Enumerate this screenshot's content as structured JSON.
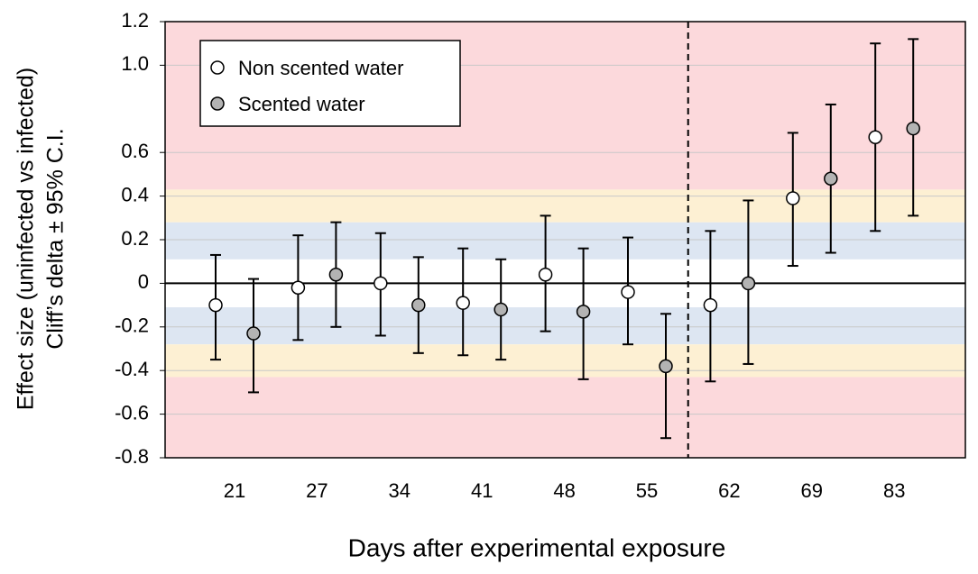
{
  "chart_data": {
    "type": "errorbar-scatter",
    "x_label": "Days after experimental exposure",
    "y_label": [
      "Effect size (uninfected vs infected)",
      "Cliff’s delta ± 95% C.I."
    ],
    "categories": [
      "21",
      "27",
      "34",
      "41",
      "48",
      "55",
      "62",
      "69",
      "83"
    ],
    "series": [
      {
        "name": "Non scented water",
        "color": "#ffffff",
        "values": [
          -0.1,
          -0.02,
          0.0,
          -0.09,
          0.04,
          -0.04,
          -0.1,
          0.39,
          0.67
        ],
        "lower": [
          -0.35,
          -0.26,
          -0.24,
          -0.33,
          -0.22,
          -0.28,
          -0.45,
          0.08,
          0.24
        ],
        "upper": [
          0.13,
          0.22,
          0.23,
          0.16,
          0.31,
          0.21,
          0.24,
          0.69,
          1.1
        ]
      },
      {
        "name": "Scented water",
        "color": "#b3b3b3",
        "values": [
          -0.23,
          0.04,
          -0.1,
          -0.12,
          -0.13,
          -0.38,
          0.0,
          0.48,
          0.71
        ],
        "lower": [
          -0.5,
          -0.2,
          -0.32,
          -0.35,
          -0.44,
          -0.71,
          -0.37,
          0.14,
          0.31
        ],
        "upper": [
          0.02,
          0.28,
          0.12,
          0.11,
          0.16,
          -0.14,
          0.38,
          0.82,
          1.12
        ]
      }
    ],
    "bands": [
      {
        "from": 0.11,
        "to": 0.28,
        "color": "#dde6f2"
      },
      {
        "from": -0.28,
        "to": -0.11,
        "color": "#dde6f2"
      },
      {
        "from": 0.28,
        "to": 0.43,
        "color": "#fdf0d3"
      },
      {
        "from": -0.43,
        "to": -0.28,
        "color": "#fdf0d3"
      },
      {
        "from": 0.43,
        "to": 1.2,
        "color": "#fcd9dc"
      },
      {
        "from": -0.8,
        "to": -0.43,
        "color": "#fcd9dc"
      }
    ],
    "ylim": [
      -0.8,
      1.2
    ],
    "yticks": [
      -0.8,
      -0.6,
      -0.4,
      -0.2,
      0,
      0.2,
      0.4,
      0.6,
      {
        "value": 1,
        "label": "1.0"
      },
      1.2
    ],
    "grid": true,
    "legend": "upper-left"
  }
}
